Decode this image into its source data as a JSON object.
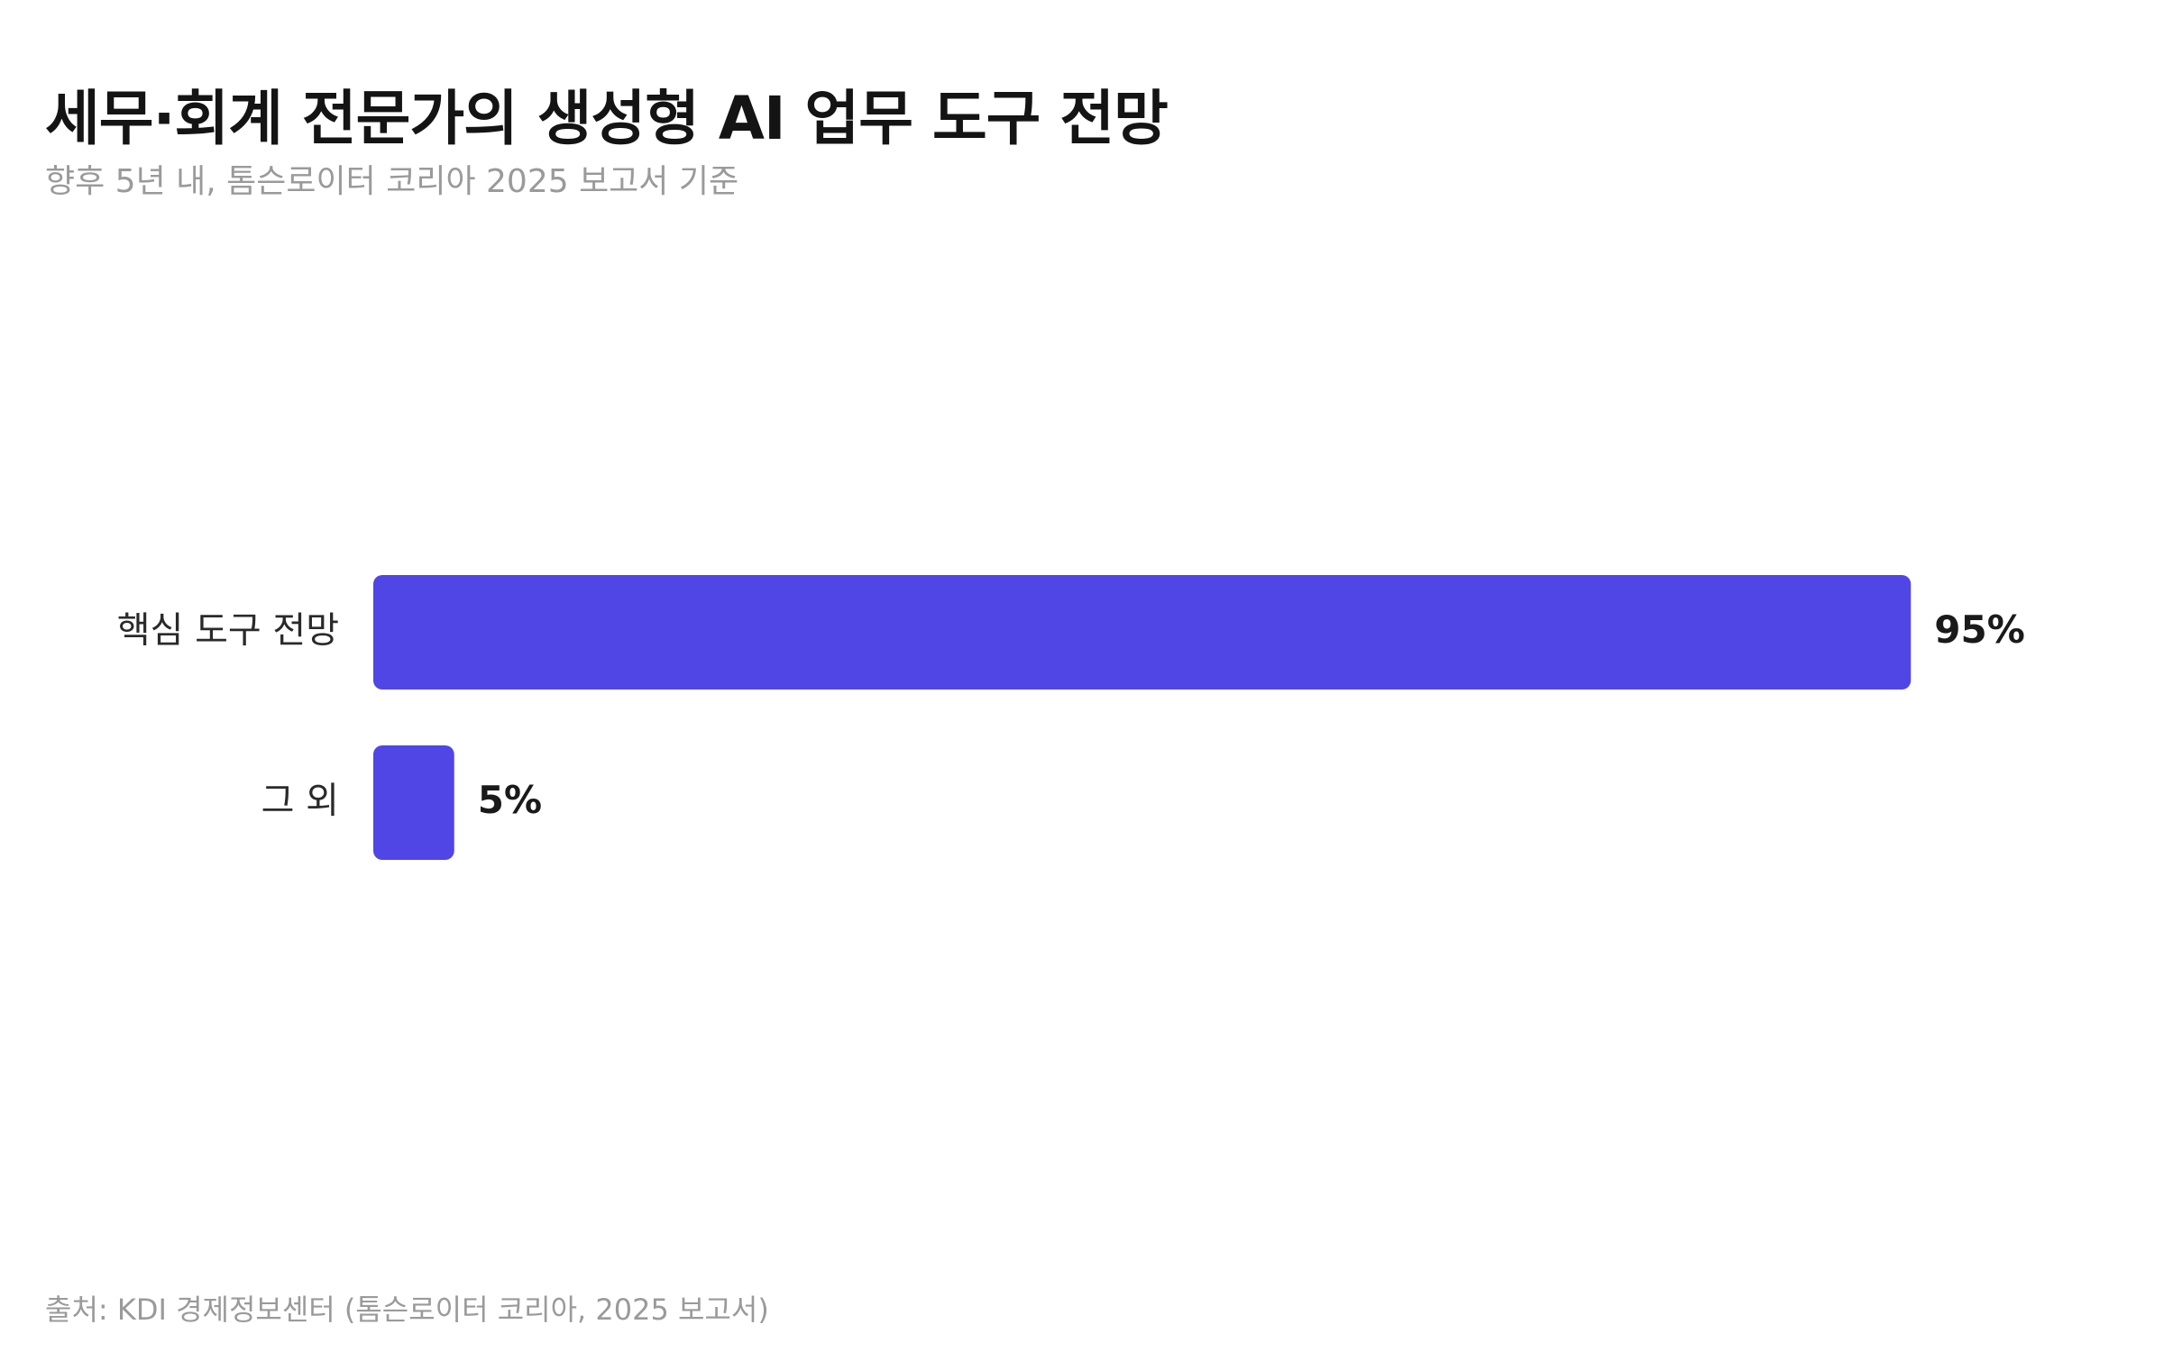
{
  "chart_data": {
    "type": "bar",
    "orientation": "horizontal",
    "title": "세무·회계 전문가의 생성형 AI 업무 도구 전망",
    "subtitle": "향후 5년 내, 톰슨로이터 코리아 2025 보고서 기준",
    "categories": [
      "핵심 도구 전망",
      "그 외"
    ],
    "values": [
      95,
      5
    ],
    "value_labels": [
      "95%",
      "5%"
    ],
    "unit": "%",
    "xlim": [
      0,
      100
    ],
    "grid": false,
    "legend": "none",
    "bar_color": "#5046E5"
  },
  "source": "출처: KDI 경제정보센터 (톰슨로이터 코리아, 2025 보고서)"
}
